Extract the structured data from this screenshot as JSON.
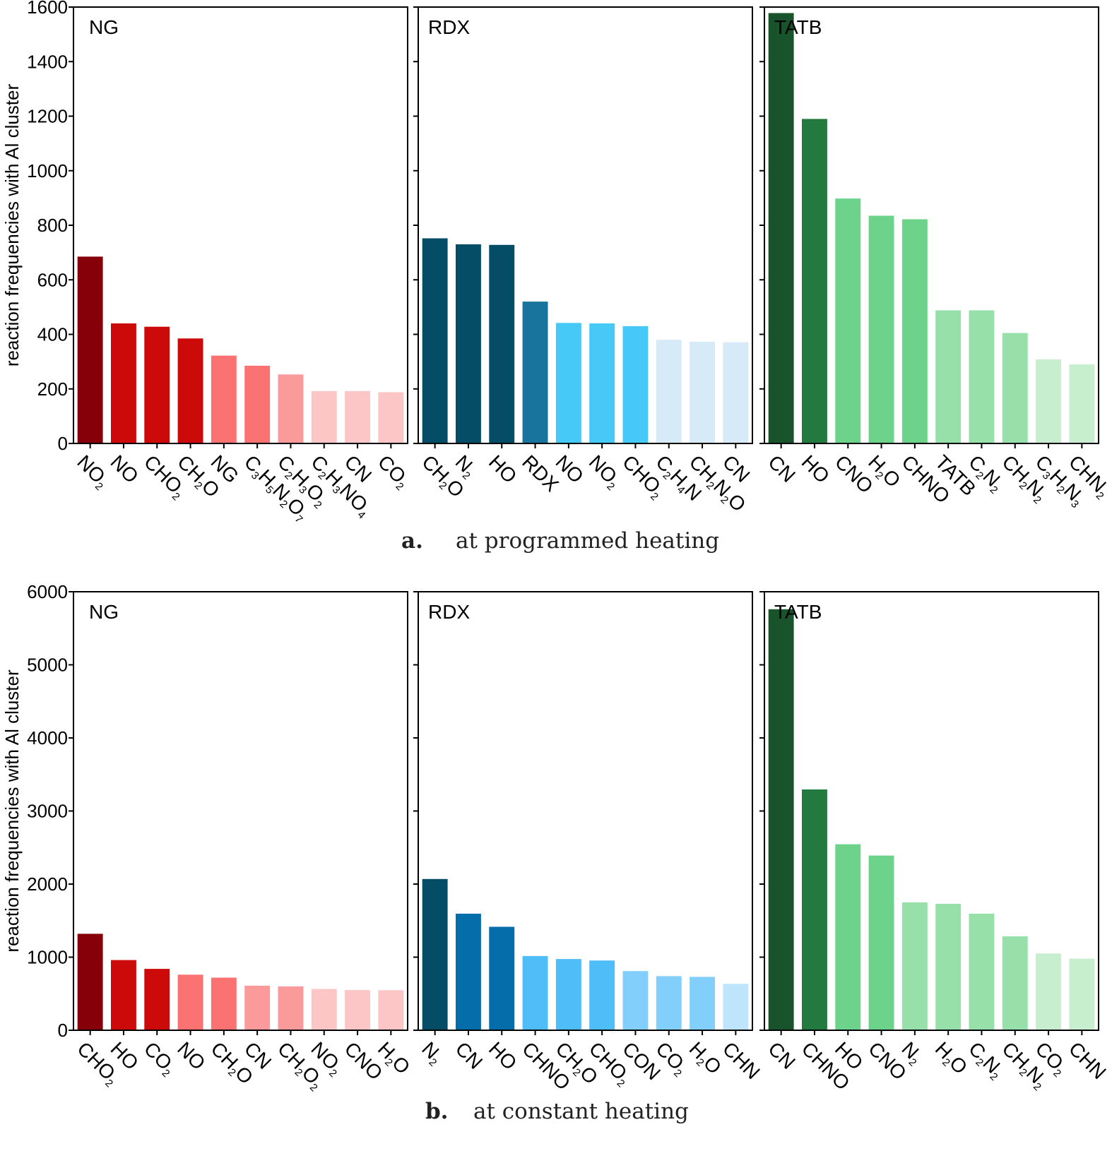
{
  "chart_data": [
    {
      "type": "bar",
      "row": "a",
      "caption_letter": "a.",
      "caption_text": "at programmed heating",
      "ylabel": "reaction frequencies with Al cluster",
      "ylim": [
        0,
        1600
      ],
      "yticks": [
        "0",
        "200",
        "400",
        "600",
        "800",
        "1000",
        "1200",
        "1400",
        "1600"
      ],
      "grid": false,
      "panels": [
        {
          "title": "NG",
          "categories": [
            {
              "parts": [
                [
                  "NO",
                  "n"
                ],
                [
                  "2",
                  "s"
                ]
              ]
            },
            {
              "parts": [
                [
                  "NO",
                  "n"
                ]
              ]
            },
            {
              "parts": [
                [
                  "CHO",
                  "n"
                ],
                [
                  "2",
                  "s"
                ]
              ]
            },
            {
              "parts": [
                [
                  "CH",
                  "n"
                ],
                [
                  "2",
                  "s"
                ],
                [
                  "O",
                  "n"
                ]
              ]
            },
            {
              "parts": [
                [
                  "NG",
                  "n"
                ]
              ],
              "color": "#d10a0a"
            },
            {
              "parts": [
                [
                  "C",
                  "n"
                ],
                [
                  "3",
                  "s"
                ],
                [
                  "H",
                  "n"
                ],
                [
                  "5",
                  "s"
                ],
                [
                  "N",
                  "n"
                ],
                [
                  "2",
                  "s"
                ],
                [
                  "O",
                  "n"
                ],
                [
                  "7",
                  "s"
                ]
              ]
            },
            {
              "parts": [
                [
                  "C",
                  "n"
                ],
                [
                  "2",
                  "s"
                ],
                [
                  "H",
                  "n"
                ],
                [
                  "3",
                  "s"
                ],
                [
                  "O",
                  "n"
                ],
                [
                  "2",
                  "s"
                ]
              ]
            },
            {
              "parts": [
                [
                  "C",
                  "n"
                ],
                [
                  "2",
                  "s"
                ],
                [
                  "H",
                  "n"
                ],
                [
                  "3",
                  "s"
                ],
                [
                  "NO",
                  "n"
                ],
                [
                  "4",
                  "s"
                ]
              ]
            },
            {
              "parts": [
                [
                  "CN",
                  "n"
                ]
              ]
            },
            {
              "parts": [
                [
                  "CO",
                  "n"
                ],
                [
                  "2",
                  "s"
                ]
              ]
            }
          ],
          "values": [
            685,
            440,
            428,
            385,
            322,
            285,
            253,
            192,
            192,
            188
          ],
          "colors": [
            "#850008",
            "#cc0a0a",
            "#cc0a0a",
            "#cc0a0a",
            "#fa7272",
            "#fa7272",
            "#fa9a9a",
            "#fcc6c6",
            "#fcc6c6",
            "#fcc6c6"
          ]
        },
        {
          "title": "RDX",
          "categories": [
            {
              "parts": [
                [
                  "CH",
                  "n"
                ],
                [
                  "2",
                  "s"
                ],
                [
                  "O",
                  "n"
                ]
              ]
            },
            {
              "parts": [
                [
                  "N",
                  "n"
                ],
                [
                  "2",
                  "s"
                ]
              ]
            },
            {
              "parts": [
                [
                  "HO",
                  "n"
                ]
              ]
            },
            {
              "parts": [
                [
                  "RDX",
                  "n"
                ]
              ],
              "color": "#1a1ab0"
            },
            {
              "parts": [
                [
                  "NO",
                  "n"
                ]
              ]
            },
            {
              "parts": [
                [
                  "NO",
                  "n"
                ],
                [
                  "2",
                  "s"
                ]
              ]
            },
            {
              "parts": [
                [
                  "CHO",
                  "n"
                ],
                [
                  "2",
                  "s"
                ]
              ]
            },
            {
              "parts": [
                [
                  "C",
                  "n"
                ],
                [
                  "2",
                  "s"
                ],
                [
                  "H",
                  "n"
                ],
                [
                  "4",
                  "s"
                ],
                [
                  "N",
                  "n"
                ]
              ]
            },
            {
              "parts": [
                [
                  "CH",
                  "n"
                ],
                [
                  "2",
                  "s"
                ],
                [
                  "N",
                  "n"
                ],
                [
                  "2",
                  "s"
                ],
                [
                  "O",
                  "n"
                ]
              ]
            },
            {
              "parts": [
                [
                  "CN",
                  "n"
                ]
              ]
            }
          ],
          "values": [
            752,
            730,
            728,
            520,
            442,
            440,
            430,
            380,
            373,
            371
          ],
          "colors": [
            "#054c66",
            "#054c66",
            "#054c66",
            "#18749c",
            "#47c9f7",
            "#47c9f7",
            "#47c9f7",
            "#d6eaf8",
            "#d6eaf8",
            "#d6eaf8"
          ]
        },
        {
          "title": "TATB",
          "categories": [
            {
              "parts": [
                [
                  "CN",
                  "n"
                ]
              ]
            },
            {
              "parts": [
                [
                  "HO",
                  "n"
                ]
              ]
            },
            {
              "parts": [
                [
                  "CNO",
                  "n"
                ]
              ]
            },
            {
              "parts": [
                [
                  "H",
                  "n"
                ],
                [
                  "2",
                  "s"
                ],
                [
                  "O",
                  "n"
                ]
              ]
            },
            {
              "parts": [
                [
                  "CHNO",
                  "n"
                ]
              ]
            },
            {
              "parts": [
                [
                  "TATB",
                  "n"
                ]
              ],
              "color": "#18a84e"
            },
            {
              "parts": [
                [
                  "C",
                  "n"
                ],
                [
                  "2",
                  "s"
                ],
                [
                  "N",
                  "n"
                ],
                [
                  "2",
                  "s"
                ]
              ]
            },
            {
              "parts": [
                [
                  "CH",
                  "n"
                ],
                [
                  "2",
                  "s"
                ],
                [
                  "N",
                  "n"
                ],
                [
                  "2",
                  "s"
                ]
              ]
            },
            {
              "parts": [
                [
                  "C",
                  "n"
                ],
                [
                  "3",
                  "s"
                ],
                [
                  "H",
                  "n"
                ],
                [
                  "2",
                  "s"
                ],
                [
                  "N",
                  "n"
                ],
                [
                  "3",
                  "s"
                ]
              ]
            },
            {
              "parts": [
                [
                  "CHN",
                  "n"
                ],
                [
                  "2",
                  "s"
                ]
              ]
            }
          ],
          "values": [
            1578,
            1190,
            898,
            835,
            822,
            488,
            488,
            405,
            308,
            290
          ],
          "colors": [
            "#19532b",
            "#237a3e",
            "#6dd38a",
            "#6dd38a",
            "#6dd38a",
            "#97e0a9",
            "#97e0a9",
            "#97e0a9",
            "#c6eecf",
            "#c6eecf"
          ]
        }
      ]
    },
    {
      "type": "bar",
      "row": "b",
      "caption_letter": "b.",
      "caption_text": "at constant heating",
      "ylabel": "reaction frequencies with Al cluster",
      "ylim": [
        0,
        6000
      ],
      "yticks": [
        "0",
        "1000",
        "2000",
        "3000",
        "4000",
        "5000",
        "6000"
      ],
      "grid": false,
      "panels": [
        {
          "title": "NG",
          "categories": [
            {
              "parts": [
                [
                  "CHO",
                  "n"
                ],
                [
                  "2",
                  "s"
                ]
              ]
            },
            {
              "parts": [
                [
                  "HO",
                  "n"
                ]
              ]
            },
            {
              "parts": [
                [
                  "CO",
                  "n"
                ],
                [
                  "2",
                  "s"
                ]
              ]
            },
            {
              "parts": [
                [
                  "NO",
                  "n"
                ]
              ]
            },
            {
              "parts": [
                [
                  "CH",
                  "n"
                ],
                [
                  "2",
                  "s"
                ],
                [
                  "O",
                  "n"
                ]
              ]
            },
            {
              "parts": [
                [
                  "CN",
                  "n"
                ]
              ]
            },
            {
              "parts": [
                [
                  "CH",
                  "n"
                ],
                [
                  "2",
                  "s"
                ],
                [
                  "O",
                  "n"
                ],
                [
                  "2",
                  "s"
                ]
              ]
            },
            {
              "parts": [
                [
                  "NO",
                  "n"
                ],
                [
                  "2",
                  "s"
                ]
              ]
            },
            {
              "parts": [
                [
                  "CNO",
                  "n"
                ]
              ]
            },
            {
              "parts": [
                [
                  "H",
                  "n"
                ],
                [
                  "2",
                  "s"
                ],
                [
                  "O",
                  "n"
                ]
              ]
            }
          ],
          "values": [
            1320,
            960,
            840,
            760,
            720,
            610,
            600,
            565,
            550,
            548
          ],
          "colors": [
            "#850008",
            "#cc0a0a",
            "#cc0a0a",
            "#fa7272",
            "#fa7272",
            "#fa9a9a",
            "#fa9a9a",
            "#fcc6c6",
            "#fcc6c6",
            "#fcc6c6"
          ]
        },
        {
          "title": "RDX",
          "categories": [
            {
              "parts": [
                [
                  "N",
                  "n"
                ],
                [
                  "2",
                  "s"
                ]
              ]
            },
            {
              "parts": [
                [
                  "CN",
                  "n"
                ]
              ]
            },
            {
              "parts": [
                [
                  "HO",
                  "n"
                ]
              ]
            },
            {
              "parts": [
                [
                  "CHNO",
                  "n"
                ]
              ]
            },
            {
              "parts": [
                [
                  "CH",
                  "n"
                ],
                [
                  "2",
                  "s"
                ],
                [
                  "O",
                  "n"
                ]
              ]
            },
            {
              "parts": [
                [
                  "CHO",
                  "n"
                ],
                [
                  "2",
                  "s"
                ]
              ]
            },
            {
              "parts": [
                [
                  "CON",
                  "n"
                ]
              ]
            },
            {
              "parts": [
                [
                  "CO",
                  "n"
                ],
                [
                  "2",
                  "s"
                ]
              ]
            },
            {
              "parts": [
                [
                  "H",
                  "n"
                ],
                [
                  "2",
                  "s"
                ],
                [
                  "O",
                  "n"
                ]
              ]
            },
            {
              "parts": [
                [
                  "CHN",
                  "n"
                ]
              ]
            }
          ],
          "values": [
            2070,
            1595,
            1415,
            1015,
            975,
            955,
            810,
            740,
            730,
            635
          ],
          "colors": [
            "#054c66",
            "#066dab",
            "#066dab",
            "#4fbdf8",
            "#4fbdf8",
            "#4fbdf8",
            "#83cffb",
            "#83cffb",
            "#83cffb",
            "#bfe5fc"
          ]
        },
        {
          "title": "TATB",
          "categories": [
            {
              "parts": [
                [
                  "CN",
                  "n"
                ]
              ]
            },
            {
              "parts": [
                [
                  "CHNO",
                  "n"
                ]
              ]
            },
            {
              "parts": [
                [
                  "HO",
                  "n"
                ]
              ]
            },
            {
              "parts": [
                [
                  "CNO",
                  "n"
                ]
              ]
            },
            {
              "parts": [
                [
                  "N",
                  "n"
                ],
                [
                  "2",
                  "s"
                ]
              ]
            },
            {
              "parts": [
                [
                  "H",
                  "n"
                ],
                [
                  "2",
                  "s"
                ],
                [
                  "O",
                  "n"
                ]
              ]
            },
            {
              "parts": [
                [
                  "C",
                  "n"
                ],
                [
                  "2",
                  "s"
                ],
                [
                  "N",
                  "n"
                ],
                [
                  "2",
                  "s"
                ]
              ]
            },
            {
              "parts": [
                [
                  "CH",
                  "n"
                ],
                [
                  "2",
                  "s"
                ],
                [
                  "N",
                  "n"
                ],
                [
                  "2",
                  "s"
                ]
              ]
            },
            {
              "parts": [
                [
                  "CO",
                  "n"
                ],
                [
                  "2",
                  "s"
                ]
              ]
            },
            {
              "parts": [
                [
                  "CHN",
                  "n"
                ]
              ]
            }
          ],
          "values": [
            5760,
            3295,
            2545,
            2390,
            1750,
            1730,
            1595,
            1285,
            1050,
            980
          ],
          "colors": [
            "#19532b",
            "#237a3e",
            "#6dd38a",
            "#6dd38a",
            "#97e0a9",
            "#97e0a9",
            "#97e0a9",
            "#97e0a9",
            "#c6eecf",
            "#c6eecf"
          ]
        }
      ]
    }
  ]
}
